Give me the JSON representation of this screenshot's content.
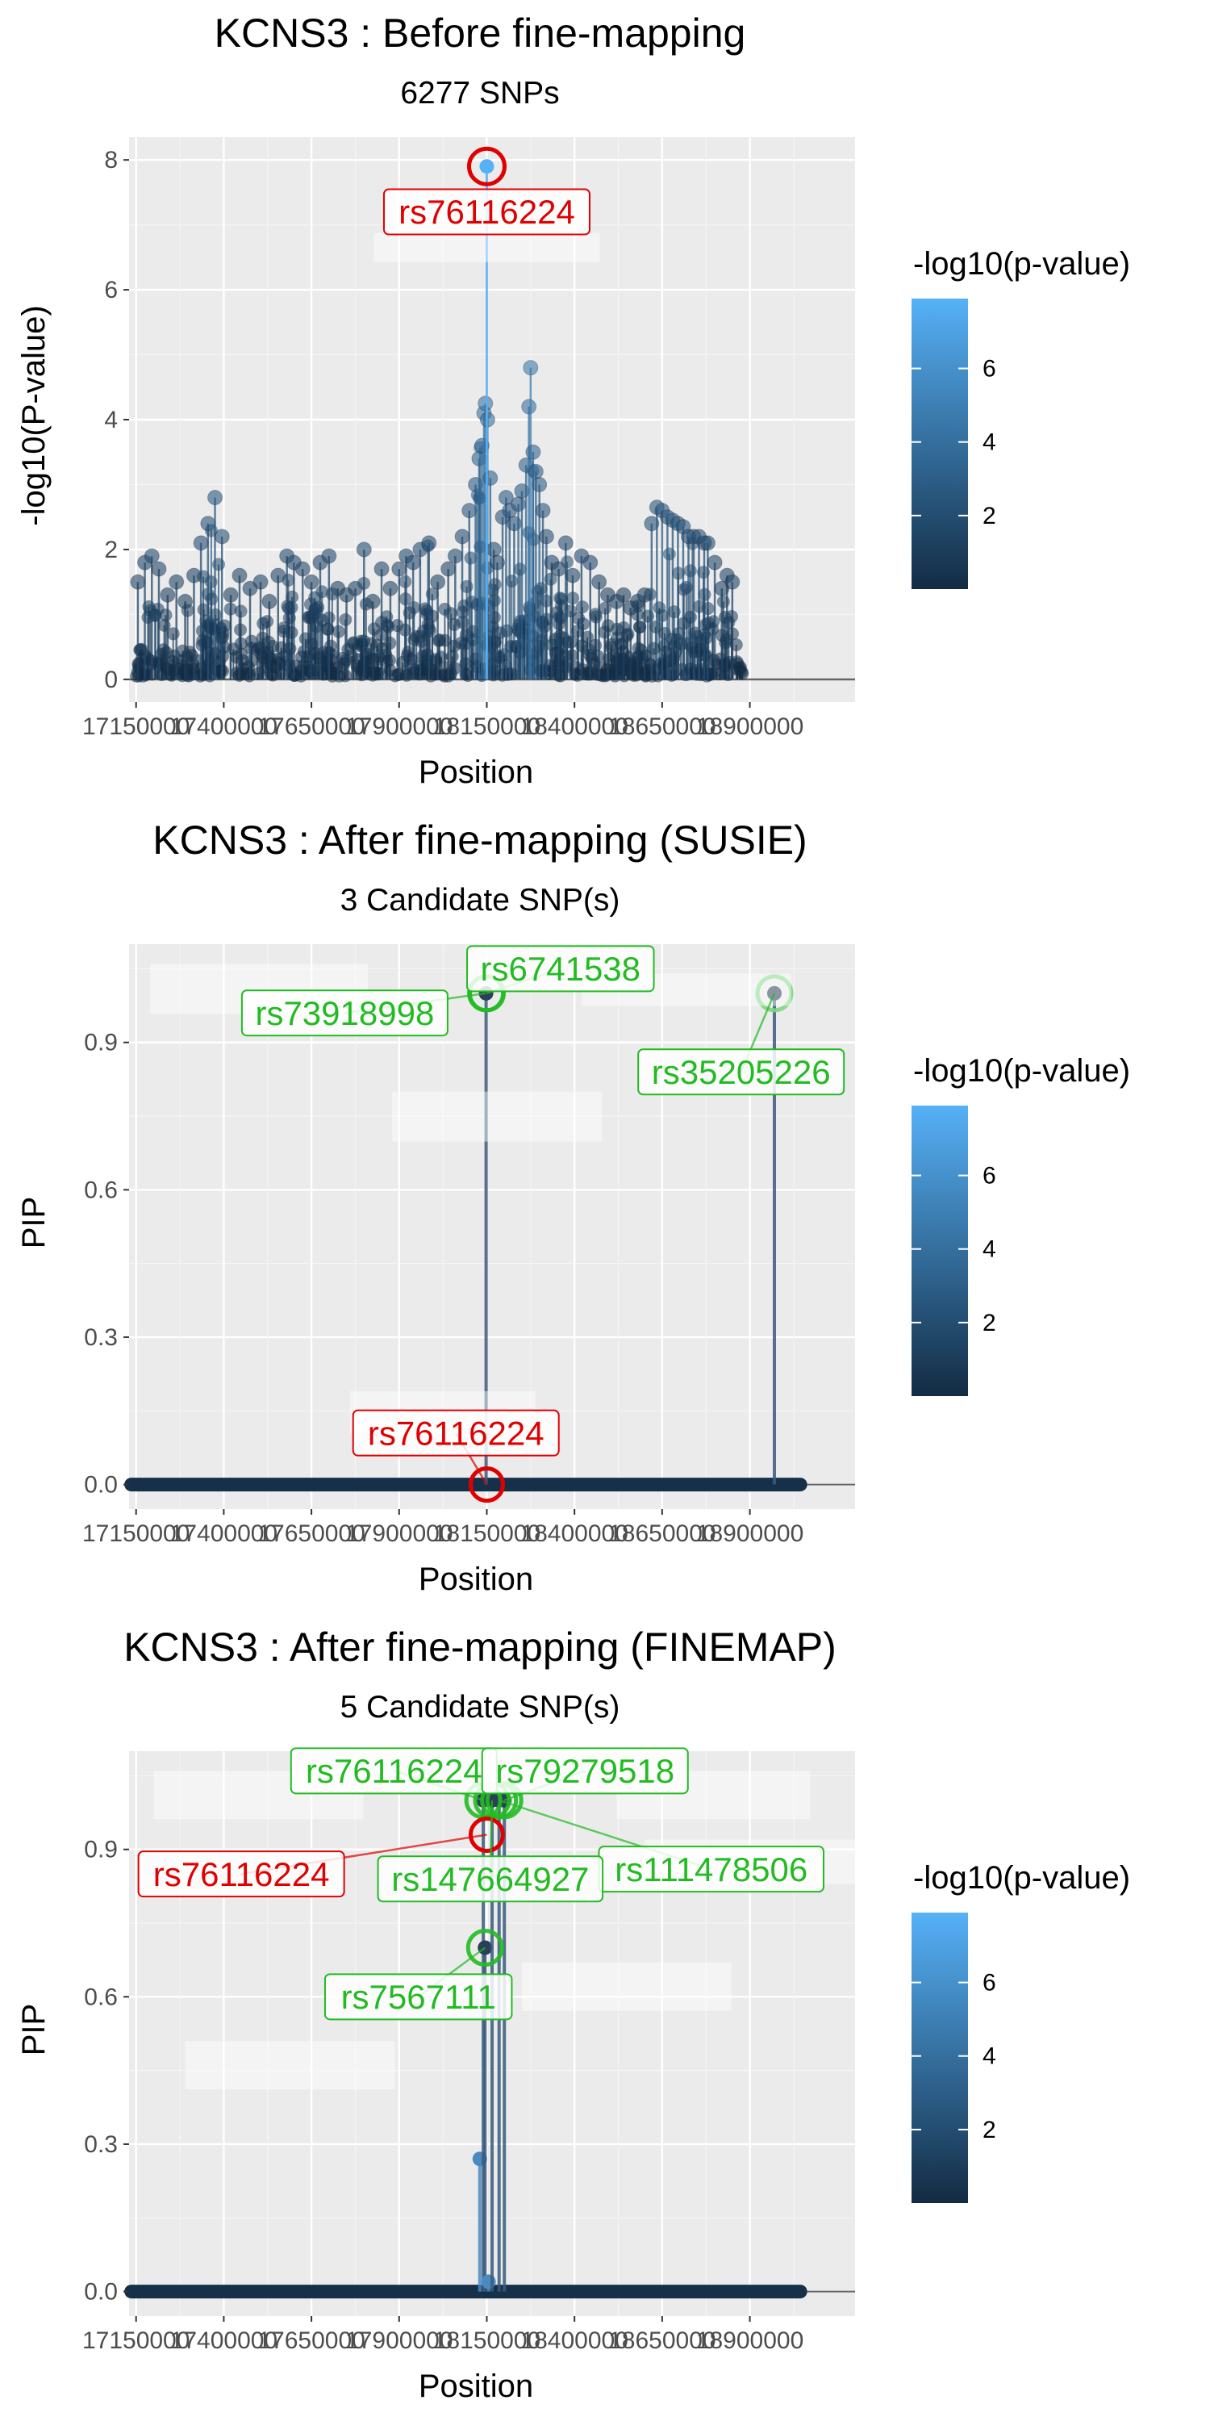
{
  "chart_data": [
    {
      "type": "scatter",
      "title": "KCNS3 : Before fine-mapping",
      "subtitle": "6277 SNPs",
      "xlabel": "Position",
      "ylabel": "-log10(P-value)",
      "x_tick_labels": [
        "17150000",
        "17400000",
        "17650000",
        "17900000",
        "18150000",
        "18400000",
        "18650000",
        "18900000"
      ],
      "x_ticks": [
        17150000,
        17400000,
        17650000,
        17900000,
        18150000,
        18400000,
        18650000,
        18900000
      ],
      "xlim": [
        17130000,
        19200000
      ],
      "ylim": [
        -0.35,
        8.35
      ],
      "y_ticks": [
        0,
        2,
        4,
        6,
        8
      ],
      "y_tick_labels": [
        "0",
        "2",
        "4",
        "6",
        "8"
      ],
      "legend": {
        "title": "-log10(p-value)",
        "ticks": [
          "2",
          "4",
          "6"
        ],
        "tick_values": [
          2,
          4,
          6
        ],
        "range": [
          0,
          7.9
        ],
        "low_color": "#132B43",
        "high_color": "#56B1F7",
        "placement": "right"
      },
      "highlight": {
        "snp": "rs76116224",
        "x": 18150000,
        "y": 7.9,
        "color": "#e00000"
      },
      "labels": [
        {
          "text": "rs76116224",
          "x": 18150000,
          "y": 7.2,
          "color": "#e00000"
        }
      ],
      "peaks": [
        [
          17155000,
          1.5
        ],
        [
          17175000,
          1.8
        ],
        [
          17195000,
          1.9
        ],
        [
          17215000,
          1.7
        ],
        [
          17240000,
          1.3
        ],
        [
          17265000,
          1.5
        ],
        [
          17290000,
          1.2
        ],
        [
          17315000,
          1.6
        ],
        [
          17335000,
          2.1
        ],
        [
          17355000,
          2.4
        ],
        [
          17375000,
          2.8
        ],
        [
          17395000,
          2.2
        ],
        [
          17420000,
          1.3
        ],
        [
          17445000,
          1.6
        ],
        [
          17475000,
          1.4
        ],
        [
          17505000,
          1.5
        ],
        [
          17530000,
          1.2
        ],
        [
          17555000,
          1.6
        ],
        [
          17580000,
          1.9
        ],
        [
          17600000,
          1.8
        ],
        [
          17625000,
          1.7
        ],
        [
          17650000,
          1.5
        ],
        [
          17675000,
          1.8
        ],
        [
          17700000,
          1.9
        ],
        [
          17725000,
          1.4
        ],
        [
          17750000,
          1.3
        ],
        [
          17775000,
          1.4
        ],
        [
          17800000,
          2.0
        ],
        [
          17825000,
          1.2
        ],
        [
          17850000,
          1.7
        ],
        [
          17875000,
          1.4
        ],
        [
          17900000,
          1.7
        ],
        [
          17920000,
          1.9
        ],
        [
          17940000,
          1.8
        ],
        [
          17960000,
          2.0
        ],
        [
          17985000,
          2.1
        ],
        [
          18010000,
          1.5
        ],
        [
          18040000,
          1.7
        ],
        [
          18060000,
          1.9
        ],
        [
          18080000,
          2.2
        ],
        [
          18100000,
          2.6
        ],
        [
          18118000,
          3.0
        ],
        [
          18128000,
          3.4
        ],
        [
          18136000,
          3.6
        ],
        [
          18142000,
          4.1
        ],
        [
          18146000,
          4.25
        ],
        [
          18152000,
          4.0
        ],
        [
          18160000,
          3.1
        ],
        [
          18170000,
          2.0
        ],
        [
          18180000,
          1.8
        ],
        [
          18195000,
          2.5
        ],
        [
          18205000,
          2.8
        ],
        [
          18215000,
          2.6
        ],
        [
          18228000,
          2.4
        ],
        [
          18240000,
          2.7
        ],
        [
          18250000,
          2.9
        ],
        [
          18262000,
          3.3
        ],
        [
          18270000,
          4.2
        ],
        [
          18275000,
          4.8
        ],
        [
          18282000,
          3.5
        ],
        [
          18290000,
          3.2
        ],
        [
          18300000,
          3.0
        ],
        [
          18310000,
          2.6
        ],
        [
          18320000,
          2.2
        ],
        [
          18335000,
          1.8
        ],
        [
          18355000,
          1.7
        ],
        [
          18375000,
          2.1
        ],
        [
          18395000,
          1.6
        ],
        [
          18420000,
          1.9
        ],
        [
          18445000,
          1.8
        ],
        [
          18470000,
          1.5
        ],
        [
          18495000,
          1.3
        ],
        [
          18520000,
          1.2
        ],
        [
          18540000,
          1.3
        ],
        [
          18560000,
          1.1
        ],
        [
          18580000,
          1.2
        ],
        [
          18600000,
          1.3
        ],
        [
          18620000,
          2.4
        ],
        [
          18635000,
          2.65
        ],
        [
          18650000,
          2.6
        ],
        [
          18665000,
          2.5
        ],
        [
          18680000,
          2.45
        ],
        [
          18695000,
          2.4
        ],
        [
          18710000,
          2.35
        ],
        [
          18725000,
          2.2
        ],
        [
          18740000,
          2.2
        ],
        [
          18755000,
          2.2
        ],
        [
          18770000,
          2.1
        ],
        [
          18780000,
          2.1
        ],
        [
          18800000,
          1.8
        ],
        [
          18820000,
          1.4
        ],
        [
          18835000,
          1.6
        ],
        [
          18850000,
          1.5
        ]
      ]
    },
    {
      "type": "scatter",
      "title": "KCNS3 : After fine-mapping (SUSIE)",
      "subtitle": "3 Candidate SNP(s)",
      "xlabel": "Position",
      "ylabel": "PIP",
      "x_tick_labels": [
        "17150000",
        "17400000",
        "17650000",
        "17900000",
        "18150000",
        "18400000",
        "18650000",
        "18900000"
      ],
      "x_ticks": [
        17150000,
        17400000,
        17650000,
        17900000,
        18150000,
        18400000,
        18650000,
        18900000
      ],
      "xlim": [
        17130000,
        19200000
      ],
      "ylim": [
        -0.05,
        1.1
      ],
      "y_ticks": [
        0,
        0.3,
        0.6,
        0.9
      ],
      "y_tick_labels": [
        "0.0",
        "0.3",
        "0.6",
        "0.9"
      ],
      "legend": {
        "title": "-log10(p-value)",
        "ticks": [
          "2",
          "4",
          "6"
        ],
        "tick_values": [
          2,
          4,
          6
        ],
        "range": [
          0,
          7.9
        ],
        "low_color": "#132B43",
        "high_color": "#56B1F7",
        "placement": "right"
      },
      "candidates": [
        {
          "snp": "rs73918998",
          "x": 18148000,
          "y": 1.0,
          "color": "#22bb22"
        },
        {
          "snp": "rs6741538",
          "x": 18150000,
          "y": 1.0,
          "color": "#22bb22"
        },
        {
          "snp": "rs35205226",
          "x": 18970000,
          "y": 1.0,
          "color": "#7dd87d"
        }
      ],
      "highlight": {
        "snp": "rs76116224",
        "x": 18150000,
        "y": 0.0,
        "color": "#e00000"
      },
      "labels": [
        {
          "text": "rs73918998",
          "x": 17745000,
          "y": 0.96,
          "color": "#22bb22"
        },
        {
          "text": "rs6741538",
          "x": 18360000,
          "y": 1.05,
          "color": "#22bb22"
        },
        {
          "text": "rs35205226",
          "x": 18875000,
          "y": 0.84,
          "color": "#22bb22"
        },
        {
          "text": "rs76116224",
          "x": 18062000,
          "y": 0.105,
          "color": "#e00000"
        }
      ],
      "stems": [
        [
          18148000,
          1.0
        ],
        [
          18970000,
          1.0
        ]
      ],
      "baseline": {
        "y": 0.0,
        "xmin": 17130000,
        "xmax": 19205000
      }
    },
    {
      "type": "scatter",
      "title": "KCNS3 : After fine-mapping (FINEMAP)",
      "subtitle": "5 Candidate SNP(s)",
      "xlabel": "Position",
      "ylabel": "PIP",
      "x_tick_labels": [
        "17150000",
        "17400000",
        "17650000",
        "17900000",
        "18150000",
        "18400000",
        "18650000",
        "18900000"
      ],
      "x_ticks": [
        17150000,
        17400000,
        17650000,
        17900000,
        18150000,
        18400000,
        18650000,
        18900000
      ],
      "xlim": [
        17130000,
        19200000
      ],
      "ylim": [
        -0.05,
        1.1
      ],
      "y_ticks": [
        0,
        0.3,
        0.6,
        0.9
      ],
      "y_tick_labels": [
        "0.0",
        "0.3",
        "0.6",
        "0.9"
      ],
      "legend": {
        "title": "-log10(p-value)",
        "ticks": [
          "2",
          "4",
          "6"
        ],
        "tick_values": [
          2,
          4,
          6
        ],
        "range": [
          0,
          7.9
        ],
        "low_color": "#132B43",
        "high_color": "#56B1F7",
        "placement": "right"
      },
      "candidates": [
        {
          "snp": "rs76116224",
          "x": 18140000,
          "y": 1.0,
          "color": "#22bb22"
        },
        {
          "snp": "rs79279518",
          "x": 18200000,
          "y": 1.0,
          "color": "#22bb22"
        },
        {
          "snp": "rs147664927",
          "x": 18165000,
          "y": 1.0,
          "color": "#22bb22"
        },
        {
          "snp": "rs111478506",
          "x": 18185000,
          "y": 1.0,
          "color": "#22bb22"
        },
        {
          "snp": "rs7567111",
          "x": 18145000,
          "y": 0.7,
          "color": "#22bb22"
        }
      ],
      "highlight": {
        "snp": "rs76116224",
        "x": 18150000,
        "y": 0.93,
        "color": "#e00000"
      },
      "labels": [
        {
          "text": "rs76116224",
          "x": 17885000,
          "y": 1.06,
          "color": "#22bb22"
        },
        {
          "text": "rs79279518",
          "x": 18430000,
          "y": 1.06,
          "color": "#22bb22"
        },
        {
          "text": "rs76116224",
          "x": 17450000,
          "y": 0.85,
          "color": "#e00000"
        },
        {
          "text": "rs111478506",
          "x": 18790000,
          "y": 0.86,
          "color": "#22bb22"
        },
        {
          "text": "rs147664927",
          "x": 18160000,
          "y": 0.84,
          "color": "#22bb22"
        },
        {
          "text": "rs7567111",
          "x": 17955000,
          "y": 0.6,
          "color": "#22bb22"
        }
      ],
      "stems": [
        [
          18130000,
          0.27
        ],
        [
          18140000,
          1.0
        ],
        [
          18145000,
          0.7
        ],
        [
          18155000,
          0.02
        ],
        [
          18165000,
          1.0
        ],
        [
          18185000,
          1.0
        ],
        [
          18200000,
          1.0
        ]
      ],
      "baseline": {
        "y": 0.0,
        "xmin": 17130000,
        "xmax": 19205000
      }
    }
  ]
}
